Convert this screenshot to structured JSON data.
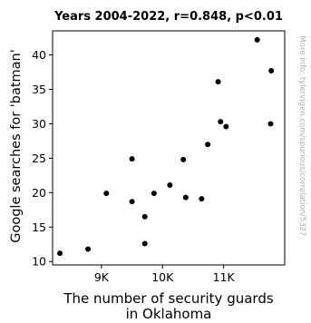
{
  "chart_data": {
    "type": "scatter",
    "title": "Years 2004-2022, r=0.848, p<0.01",
    "xlabel": "The number of security guards\nin Oklahoma",
    "ylabel": "Google searches for 'batman'",
    "watermark": "More info: tylervigen.com/spurious/correlation/5327",
    "xlim": [
      8200,
      12000
    ],
    "ylim": [
      9.5,
      43.5
    ],
    "xticks": [
      9000,
      10000,
      11000
    ],
    "xtick_labels": [
      "9K",
      "10K",
      "11K"
    ],
    "yticks": [
      10,
      15,
      20,
      25,
      30,
      35,
      40
    ],
    "ytick_labels": [
      "10",
      "15",
      "20",
      "25",
      "30",
      "35",
      "40"
    ],
    "grid": false,
    "legend": "none",
    "point_color": "#000000",
    "points": [
      {
        "x": 8320,
        "y": 11.2
      },
      {
        "x": 8780,
        "y": 11.8
      },
      {
        "x": 9080,
        "y": 19.9
      },
      {
        "x": 9500,
        "y": 18.7
      },
      {
        "x": 9500,
        "y": 24.9
      },
      {
        "x": 9710,
        "y": 16.5
      },
      {
        "x": 9710,
        "y": 12.6
      },
      {
        "x": 9860,
        "y": 19.9
      },
      {
        "x": 10120,
        "y": 21.1
      },
      {
        "x": 10340,
        "y": 24.8
      },
      {
        "x": 10380,
        "y": 19.3
      },
      {
        "x": 10640,
        "y": 19.1
      },
      {
        "x": 10740,
        "y": 27.0
      },
      {
        "x": 10910,
        "y": 36.1
      },
      {
        "x": 10950,
        "y": 30.3
      },
      {
        "x": 11040,
        "y": 29.6
      },
      {
        "x": 11550,
        "y": 42.2
      },
      {
        "x": 11770,
        "y": 30.0
      },
      {
        "x": 11780,
        "y": 37.7
      }
    ]
  }
}
